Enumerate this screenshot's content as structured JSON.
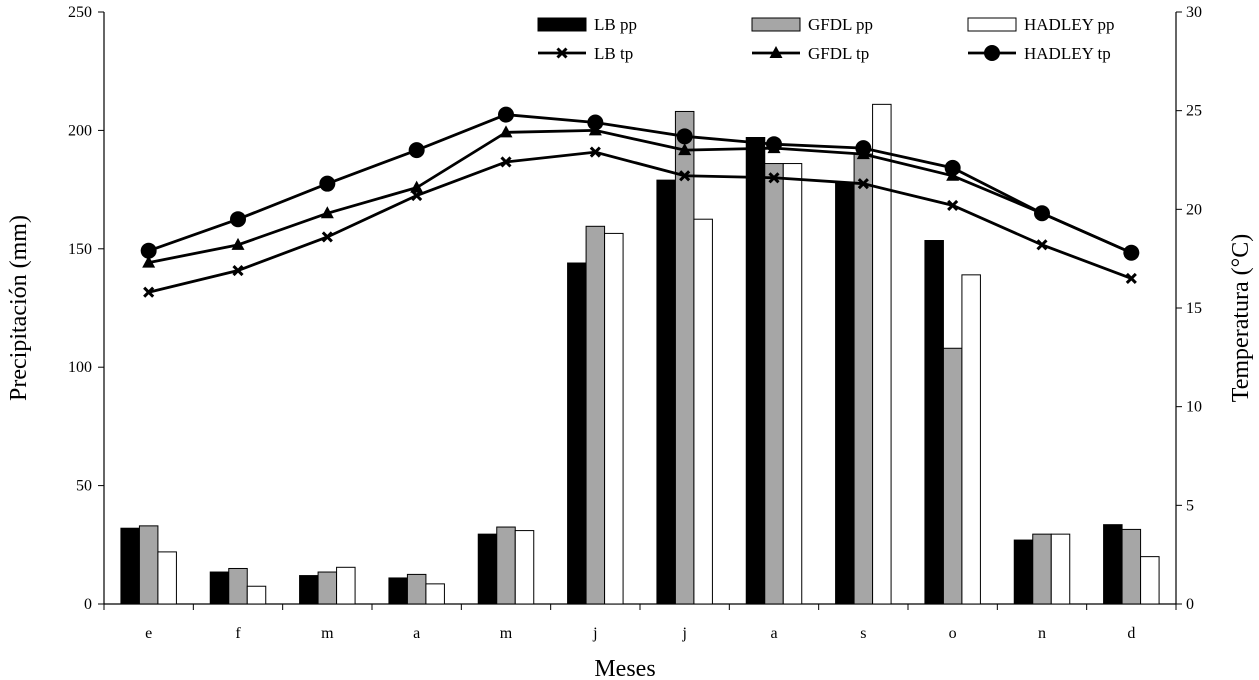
{
  "chart_data": {
    "type": "bar+line",
    "categories": [
      "e",
      "f",
      "m",
      "a",
      "m",
      "j",
      "j",
      "a",
      "s",
      "o",
      "n",
      "d"
    ],
    "xlabel": "Meses",
    "ylabel_left": "Precipitación (mm)",
    "ylabel_right": "Temperatura  (°C)",
    "ylim_left": [
      0,
      250
    ],
    "ylim_right": [
      0,
      30
    ],
    "yticks_left": [
      0,
      50,
      100,
      150,
      200,
      250
    ],
    "yticks_right": [
      0,
      5,
      10,
      15,
      20,
      25,
      30
    ],
    "grid": false,
    "legend_position": "top",
    "bar_series": [
      {
        "name": "LB pp",
        "color": "#000000",
        "values": [
          32,
          13.5,
          12,
          11,
          29.5,
          144,
          179,
          197,
          178,
          153.5,
          27,
          33.5
        ]
      },
      {
        "name": "GFDL pp",
        "color": "#a6a6a6",
        "values": [
          33,
          15,
          13.5,
          12.5,
          32.5,
          159.5,
          208,
          186,
          190,
          108,
          29.5,
          31.5
        ]
      },
      {
        "name": "HADLEY pp",
        "color": "#ffffff",
        "values": [
          22,
          7.5,
          15.5,
          8.5,
          31,
          156.5,
          162.5,
          186,
          211,
          139,
          29.5,
          20
        ]
      }
    ],
    "line_series": [
      {
        "name": "LB tp",
        "marker": "x",
        "values": [
          15.8,
          16.9,
          18.6,
          20.7,
          22.4,
          22.9,
          21.7,
          21.6,
          21.3,
          20.2,
          18.2,
          16.5
        ]
      },
      {
        "name": "GFDL tp",
        "marker": "triangle",
        "values": [
          17.3,
          18.2,
          19.8,
          21.1,
          23.9,
          24.0,
          23.0,
          23.1,
          22.8,
          21.7,
          19.8,
          17.8
        ]
      },
      {
        "name": "HADLEY tp",
        "marker": "circle",
        "values": [
          17.9,
          19.5,
          21.3,
          23.0,
          24.8,
          24.4,
          23.7,
          23.3,
          23.1,
          22.1,
          19.8,
          17.8
        ]
      }
    ]
  }
}
